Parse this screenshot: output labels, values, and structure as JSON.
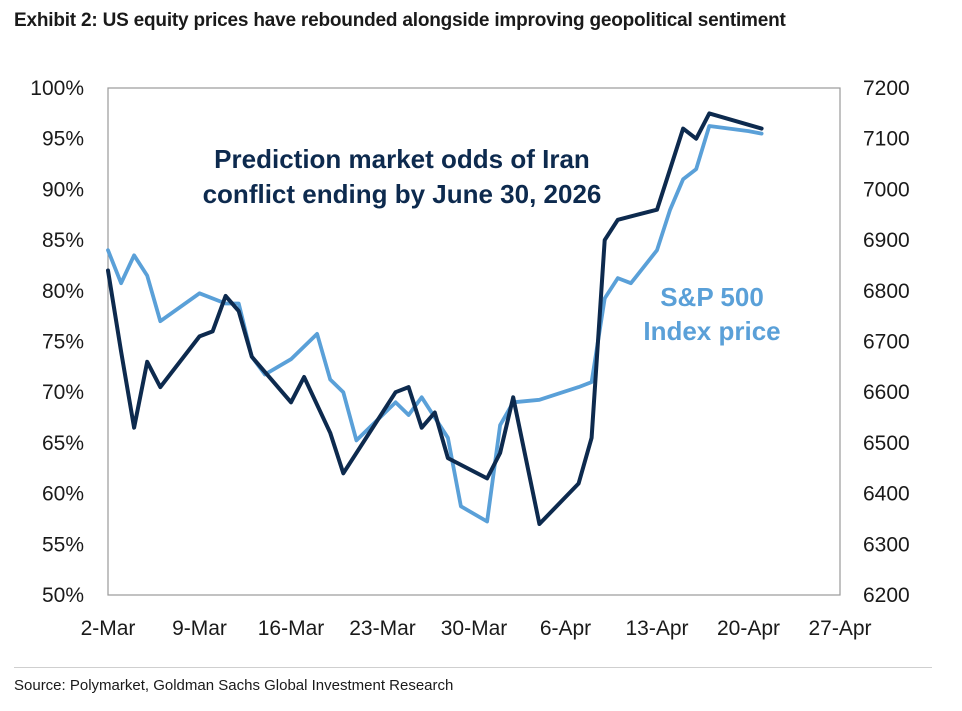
{
  "exhibit": {
    "title": "Exhibit 2: US equity prices have rebounded alongside improving geopolitical sentiment",
    "source": "Source: Polymarket, Goldman Sachs Global Investment Research"
  },
  "chart_data": {
    "type": "line",
    "x_axis": {
      "type": "date",
      "range": [
        "2026-03-02",
        "2026-04-27"
      ],
      "ticks": [
        "2026-03-02",
        "2026-03-09",
        "2026-03-16",
        "2026-03-23",
        "2026-03-30",
        "2026-04-06",
        "2026-04-13",
        "2026-04-20",
        "2026-04-27"
      ],
      "tick_labels": [
        "2-Mar",
        "9-Mar",
        "16-Mar",
        "23-Mar",
        "30-Mar",
        "6-Apr",
        "13-Apr",
        "20-Apr",
        "27-Apr"
      ]
    },
    "y_left": {
      "range": [
        50,
        100
      ],
      "ticks": [
        50,
        55,
        60,
        65,
        70,
        75,
        80,
        85,
        90,
        95,
        100
      ],
      "tick_labels": [
        "50%",
        "55%",
        "60%",
        "65%",
        "70%",
        "75%",
        "80%",
        "85%",
        "90%",
        "95%",
        "100%"
      ]
    },
    "y_right": {
      "range": [
        6200,
        7200
      ],
      "ticks": [
        6200,
        6300,
        6400,
        6500,
        6600,
        6700,
        6800,
        6900,
        7000,
        7100,
        7200
      ],
      "tick_labels": [
        "6200",
        "6300",
        "6400",
        "6500",
        "6600",
        "6700",
        "6800",
        "6900",
        "7000",
        "7100",
        "7200"
      ]
    },
    "grid": false,
    "series": [
      {
        "name": "Prediction market odds of Iran conflict ending by June 30, 2026",
        "axis": "left",
        "color": "#0d2a4e",
        "annotation": [
          "Prediction market odds of Iran",
          "conflict ending by June 30, 2026"
        ],
        "points": [
          [
            "2026-03-02",
            82
          ],
          [
            "2026-03-03",
            74
          ],
          [
            "2026-03-04",
            66.5
          ],
          [
            "2026-03-05",
            73
          ],
          [
            "2026-03-06",
            70.5
          ],
          [
            "2026-03-09",
            75.5
          ],
          [
            "2026-03-10",
            76
          ],
          [
            "2026-03-11",
            79.5
          ],
          [
            "2026-03-12",
            78
          ],
          [
            "2026-03-13",
            73.5
          ],
          [
            "2026-03-16",
            69
          ],
          [
            "2026-03-17",
            71.5
          ],
          [
            "2026-03-19",
            66
          ],
          [
            "2026-03-20",
            62
          ],
          [
            "2026-03-24",
            70
          ],
          [
            "2026-03-25",
            70.5
          ],
          [
            "2026-03-26",
            66.5
          ],
          [
            "2026-03-27",
            68
          ],
          [
            "2026-03-28",
            63.5
          ],
          [
            "2026-03-31",
            61.5
          ],
          [
            "2026-04-01",
            64
          ],
          [
            "2026-04-02",
            69.5
          ],
          [
            "2026-04-04",
            57
          ],
          [
            "2026-04-07",
            61
          ],
          [
            "2026-04-08",
            65.5
          ],
          [
            "2026-04-09",
            85
          ],
          [
            "2026-04-10",
            87
          ],
          [
            "2026-04-13",
            88
          ],
          [
            "2026-04-14",
            92
          ],
          [
            "2026-04-15",
            96
          ],
          [
            "2026-04-16",
            95
          ],
          [
            "2026-04-17",
            97.5
          ],
          [
            "2026-04-21",
            96
          ]
        ]
      },
      {
        "name": "S&P 500 Index price",
        "axis": "right",
        "color": "#5aa0d8",
        "annotation": [
          "S&P 500",
          "Index price"
        ],
        "points": [
          [
            "2026-03-02",
            6880
          ],
          [
            "2026-03-03",
            6815
          ],
          [
            "2026-03-04",
            6870
          ],
          [
            "2026-03-05",
            6830
          ],
          [
            "2026-03-06",
            6740
          ],
          [
            "2026-03-09",
            6795
          ],
          [
            "2026-03-11",
            6775
          ],
          [
            "2026-03-12",
            6775
          ],
          [
            "2026-03-13",
            6670
          ],
          [
            "2026-03-14",
            6635
          ],
          [
            "2026-03-16",
            6665
          ],
          [
            "2026-03-18",
            6715
          ],
          [
            "2026-03-19",
            6625
          ],
          [
            "2026-03-20",
            6600
          ],
          [
            "2026-03-21",
            6505
          ],
          [
            "2026-03-24",
            6580
          ],
          [
            "2026-03-25",
            6555
          ],
          [
            "2026-03-26",
            6590
          ],
          [
            "2026-03-28",
            6510
          ],
          [
            "2026-03-29",
            6375
          ],
          [
            "2026-03-31",
            6345
          ],
          [
            "2026-04-01",
            6535
          ],
          [
            "2026-04-02",
            6580
          ],
          [
            "2026-04-04",
            6585
          ],
          [
            "2026-04-07",
            6610
          ],
          [
            "2026-04-08",
            6620
          ],
          [
            "2026-04-09",
            6785
          ],
          [
            "2026-04-10",
            6825
          ],
          [
            "2026-04-11",
            6815
          ],
          [
            "2026-04-13",
            6880
          ],
          [
            "2026-04-14",
            6960
          ],
          [
            "2026-04-15",
            7020
          ],
          [
            "2026-04-16",
            7040
          ],
          [
            "2026-04-17",
            7125
          ],
          [
            "2026-04-20",
            7115
          ],
          [
            "2026-04-21",
            7110
          ]
        ]
      }
    ]
  }
}
